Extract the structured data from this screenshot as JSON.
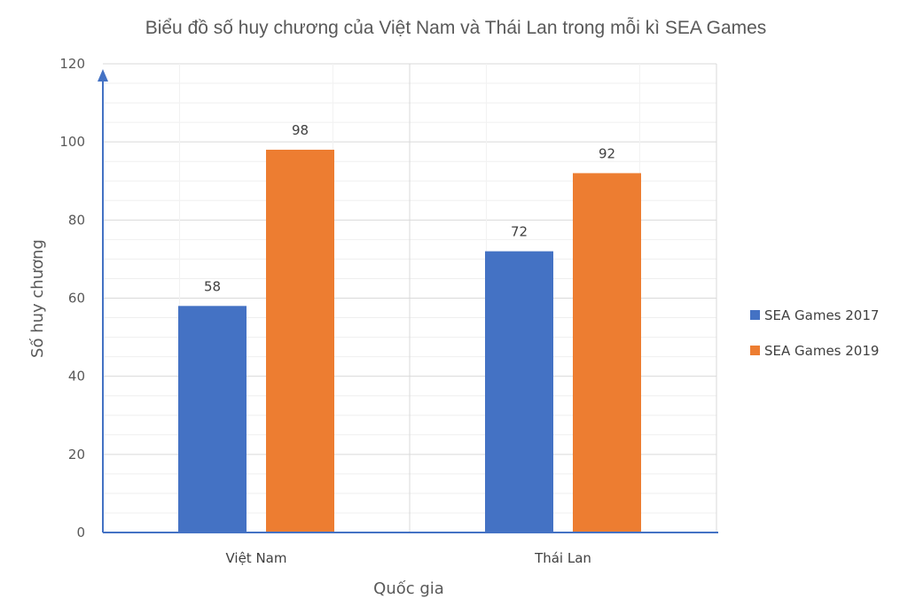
{
  "chart_data": {
    "type": "bar",
    "title": "Biểu đồ số huy chương của Việt Nam và Thái Lan trong mỗi kì SEA Games",
    "xlabel": "Quốc gia",
    "ylabel": "Số huy chương",
    "categories": [
      "Việt Nam",
      "Thái Lan"
    ],
    "series": [
      {
        "name": "SEA Games 2017",
        "values": [
          58,
          72
        ],
        "color": "#4472C4"
      },
      {
        "name": "SEA Games 2019",
        "values": [
          98,
          92
        ],
        "color": "#ED7D31"
      }
    ],
    "ylim": [
      0,
      120
    ],
    "yticks": [
      0,
      20,
      40,
      60,
      80,
      100,
      120
    ],
    "grid": true,
    "legend_position": "right",
    "axis_color": "#4472C4"
  }
}
